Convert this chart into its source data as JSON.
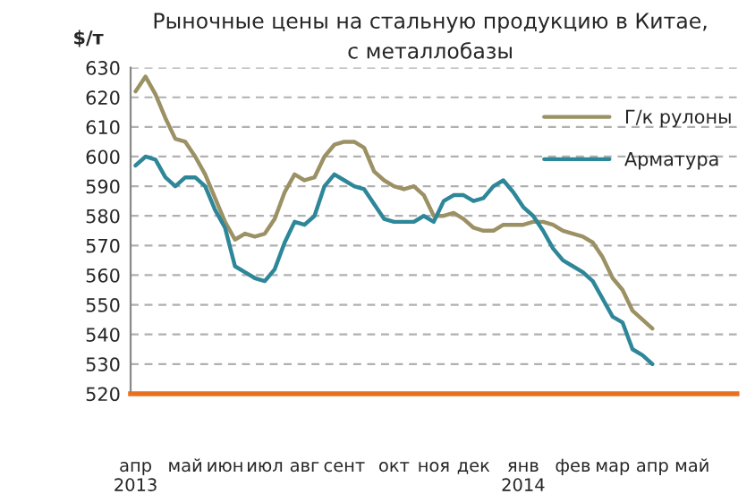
{
  "chart_data": {
    "type": "line",
    "title": "Рыночные цены на стальную продукцию в Китае,\nс металлобазы",
    "ylabel": "$/т",
    "categories": [
      "апр\n2013",
      null,
      null,
      null,
      null,
      "май",
      null,
      null,
      null,
      "июн",
      null,
      null,
      null,
      "июл",
      null,
      null,
      null,
      "авг",
      null,
      null,
      null,
      "сент",
      null,
      null,
      null,
      null,
      "окт",
      null,
      null,
      null,
      "ноя",
      null,
      null,
      null,
      "дек",
      null,
      null,
      null,
      null,
      "янв\n2014",
      null,
      null,
      null,
      null,
      "фев",
      null,
      null,
      null,
      "мар",
      null,
      null,
      null,
      "апр",
      null,
      null,
      null,
      "май",
      null,
      null,
      null,
      null
    ],
    "series": [
      {
        "name": "Г/к рулоны",
        "color": "#9b9164",
        "values": [
          622,
          627,
          621,
          613,
          606,
          605,
          600,
          594,
          586,
          578,
          572,
          574,
          573,
          574,
          579,
          588,
          594,
          592,
          593,
          600,
          604,
          605,
          605,
          603,
          595,
          592,
          590,
          589,
          590,
          587,
          580,
          580,
          581,
          579,
          576,
          575,
          575,
          577,
          577,
          577,
          578,
          578,
          577,
          575,
          574,
          573,
          571,
          566,
          559,
          555,
          548,
          545,
          542,
          null,
          null,
          null,
          null,
          null,
          null,
          null,
          null
        ]
      },
      {
        "name": "Арматура",
        "color": "#2e8799",
        "values": [
          597,
          600,
          599,
          593,
          590,
          593,
          593,
          590,
          582,
          576,
          563,
          561,
          559,
          558,
          562,
          571,
          578,
          577,
          580,
          590,
          594,
          592,
          590,
          589,
          584,
          579,
          578,
          578,
          578,
          580,
          578,
          585,
          587,
          587,
          585,
          586,
          590,
          592,
          588,
          583,
          580,
          575,
          569,
          565,
          563,
          561,
          558,
          552,
          546,
          544,
          535,
          533,
          530,
          null,
          null,
          null,
          null,
          null,
          null,
          null,
          null
        ]
      }
    ],
    "ylim": [
      520,
      630
    ],
    "yticks": [
      520,
      530,
      540,
      550,
      560,
      570,
      580,
      590,
      600,
      610,
      620,
      630
    ],
    "grid": "y",
    "legend": "right",
    "marker": "none",
    "line_style": "solid"
  }
}
